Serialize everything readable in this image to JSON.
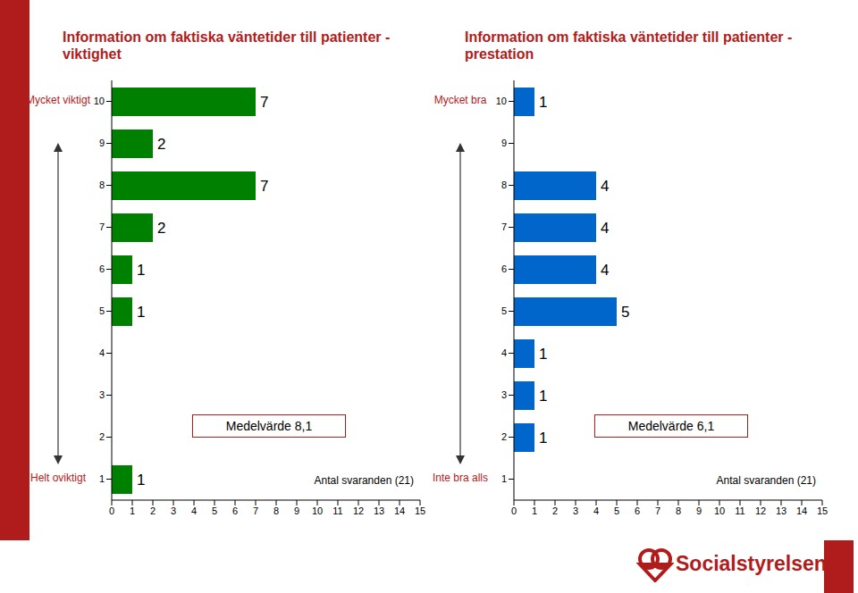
{
  "chart_data": [
    {
      "type": "bar",
      "orientation": "horizontal",
      "title": "Information om faktiska väntetider till patienter - viktighet",
      "categories": [
        "10",
        "9",
        "8",
        "7",
        "6",
        "5",
        "4",
        "3",
        "2",
        "1"
      ],
      "values": [
        7,
        2,
        7,
        2,
        1,
        1,
        null,
        null,
        null,
        1
      ],
      "color": "#008000",
      "xlim": [
        0,
        15
      ],
      "xticks": [
        0,
        1,
        2,
        3,
        4,
        5,
        6,
        7,
        8,
        9,
        10,
        11,
        12,
        13,
        14,
        15
      ],
      "grid": false,
      "data_labels": true,
      "scale_labels": {
        "top": "Mycket viktigt",
        "bottom": "Helt oviktigt"
      },
      "annotations": [
        "Medelvärde 8,1",
        "Antal svaranden (21)"
      ]
    },
    {
      "type": "bar",
      "orientation": "horizontal",
      "title": "Information om faktiska väntetider till patienter - prestation",
      "categories": [
        "10",
        "9",
        "8",
        "7",
        "6",
        "5",
        "4",
        "3",
        "2",
        "1"
      ],
      "values": [
        1,
        null,
        4,
        4,
        4,
        5,
        1,
        1,
        1,
        null
      ],
      "color": "#0066cc",
      "xlim": [
        0,
        15
      ],
      "xticks": [
        0,
        1,
        2,
        3,
        4,
        5,
        6,
        7,
        8,
        9,
        10,
        11,
        12,
        13,
        14,
        15
      ],
      "grid": false,
      "data_labels": true,
      "scale_labels": {
        "top": "Mycket bra",
        "bottom": "Inte bra alls"
      },
      "annotations": [
        "Medelvärde 6,1",
        "Antal svaranden (21)"
      ]
    }
  ],
  "footer": "Socialstyrelsen"
}
